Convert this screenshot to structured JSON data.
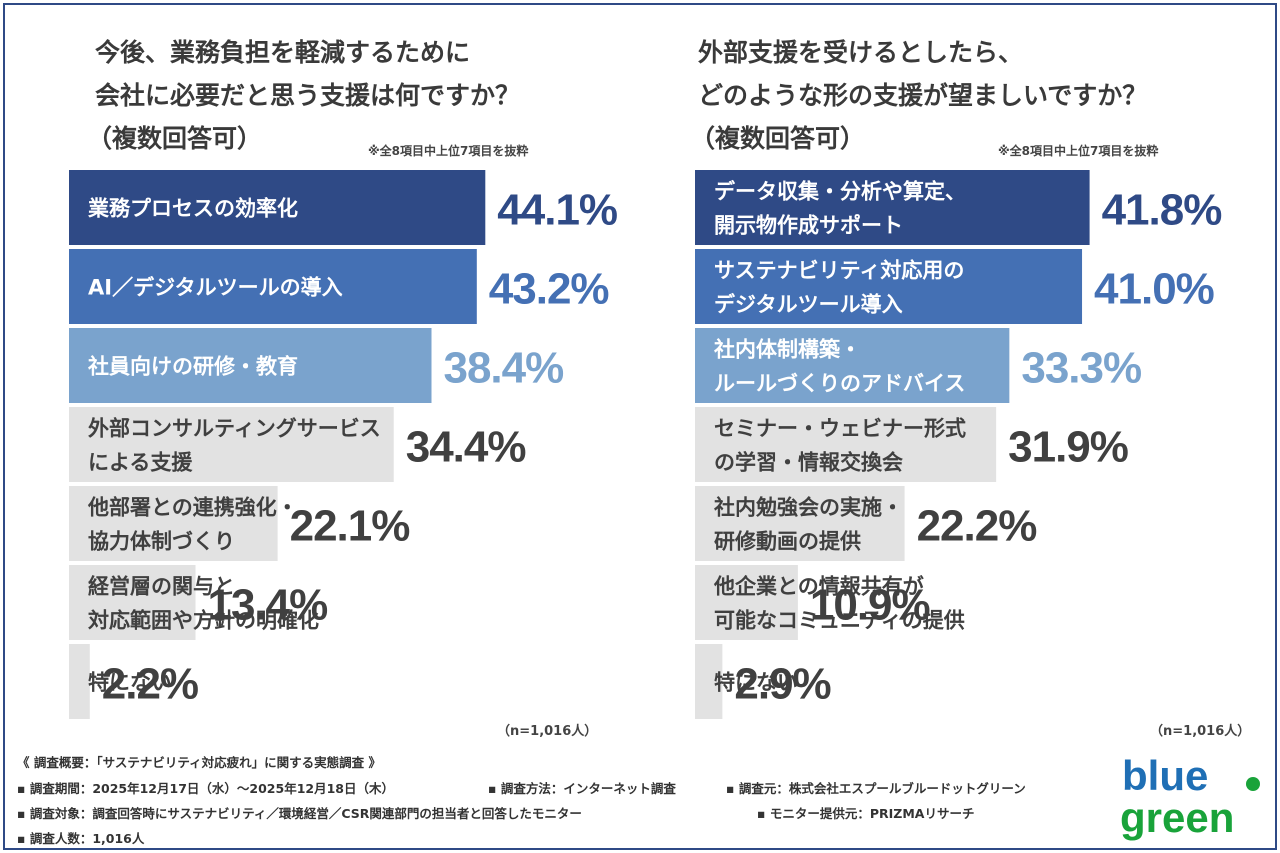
{
  "chart_data": [
    {
      "type": "bar",
      "title_lines": [
        "今後、業務負担を軽減するために",
        "会社に必要だと思う支援は何ですか？",
        "（複数回答可）"
      ],
      "note": "※全8項目中上位7項目を抜粋",
      "categories": [
        [
          "業務プロセスの効率化"
        ],
        [
          "AI／デジタルツールの導入"
        ],
        [
          "社員向けの研修・教育"
        ],
        [
          "外部コンサルティングサービス",
          "による支援"
        ],
        [
          "他部署との連携強化・",
          "協力体制づくり"
        ],
        [
          "経営層の関与と",
          "対応範囲や方針の明確化"
        ],
        [
          "特にない"
        ]
      ],
      "values": [
        44.1,
        43.2,
        38.4,
        34.4,
        22.1,
        13.4,
        2.2
      ],
      "value_labels": [
        "44.1%",
        "43.2%",
        "38.4%",
        "34.4%",
        "22.1%",
        "13.4%",
        "2.2%"
      ],
      "sample": "（n=1,016人）",
      "unit": "%"
    },
    {
      "type": "bar",
      "title_lines": [
        "外部支援を受けるとしたら、",
        "どのような形の支援が望ましいですか？",
        "（複数回答可）"
      ],
      "note": "※全8項目中上位7項目を抜粋",
      "categories": [
        [
          "データ収集・分析や算定、",
          "開示物作成サポート"
        ],
        [
          "サステナビリティ対応用の",
          "デジタルツール導入"
        ],
        [
          "社内体制構築・",
          "ルールづくりのアドバイス"
        ],
        [
          "セミナー・ウェビナー形式",
          "の学習・情報交換会"
        ],
        [
          "社内勉強会の実施・",
          "研修動画の提供"
        ],
        [
          "他企業との情報共有が",
          "可能なコミュニティの提供"
        ],
        [
          "特にない"
        ]
      ],
      "values": [
        41.8,
        41.0,
        33.3,
        31.9,
        22.2,
        10.9,
        2.9
      ],
      "value_labels": [
        "41.8%",
        "41.0%",
        "33.3%",
        "31.9%",
        "22.2%",
        "10.9%",
        "2.9%"
      ],
      "sample": "（n=1,016人）",
      "unit": "%"
    }
  ],
  "colors": {
    "bar_fills": [
      "#2f4a86",
      "#4470b4",
      "#7aa3cd",
      "#e2e2e2",
      "#e2e2e2",
      "#e2e2e2",
      "#e2e2e2"
    ],
    "label_colors": [
      "#ffffff",
      "#ffffff",
      "#ffffff",
      "#404040",
      "#404040",
      "#404040",
      "#404040"
    ],
    "value_colors": [
      "#2f4a86",
      "#4470b4",
      "#7aa3cd",
      "#404040",
      "#404040",
      "#404040",
      "#404040"
    ],
    "frame": "#2f4a86",
    "logo_blue": "#1f6fb5",
    "logo_green": "#19a33a"
  },
  "footer": {
    "overview": "《 調査概要：「サステナビリティ対応疲れ」に関する実態調査 》",
    "period": "▪ 調査期間：2025年12月17日（水）～2025年12月18日（木）",
    "method": "▪ 調査方法：インターネット調査",
    "source": "▪ 調査元：株式会社エスプールブルードットグリーン",
    "target": "▪ 調査対象：調査回答時にサステナビリティ／環境経営／CSR関連部門の担当者と回答したモニター",
    "provider": "▪ モニター提供元：PRIZMAリサーチ",
    "count": "▪ 調査人数：1,016人"
  },
  "logo": {
    "line1": "blue",
    "line2": "green",
    "icon": "dot-icon"
  }
}
